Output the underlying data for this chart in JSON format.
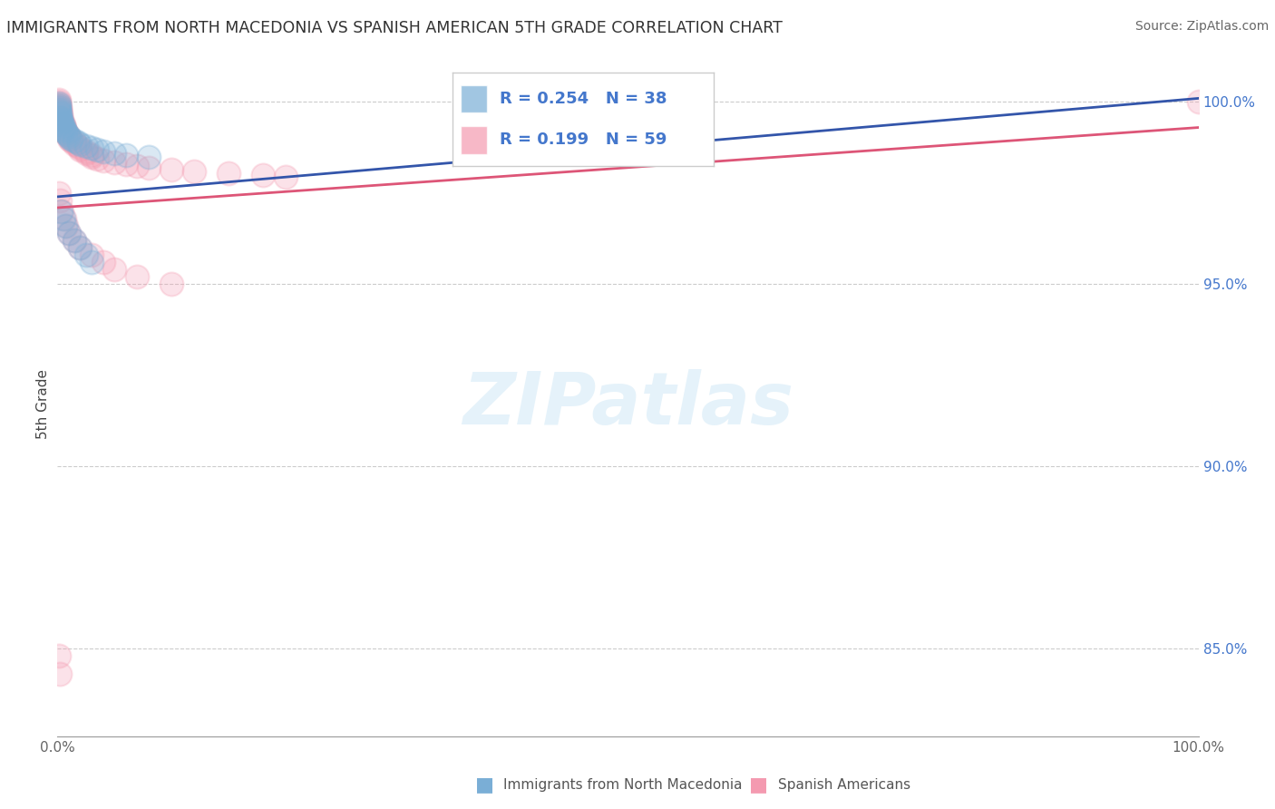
{
  "title": "IMMIGRANTS FROM NORTH MACEDONIA VS SPANISH AMERICAN 5TH GRADE CORRELATION CHART",
  "source": "Source: ZipAtlas.com",
  "ylabel": "5th Grade",
  "R_blue": 0.254,
  "N_blue": 38,
  "R_pink": 0.199,
  "N_pink": 59,
  "blue_color": "#7aaed6",
  "pink_color": "#f49ab0",
  "blue_line_color": "#3355aa",
  "pink_line_color": "#dd5577",
  "legend_text_color": "#4477cc",
  "grid_color": "#cccccc",
  "background_color": "#ffffff",
  "watermark_color": "#d4eaf7",
  "xlim": [
    0.0,
    1.0
  ],
  "ylim": [
    0.826,
    1.008
  ],
  "y_ticks": [
    0.85,
    0.9,
    0.95,
    1.0
  ],
  "y_tick_labels": [
    "85.0%",
    "90.0%",
    "95.0%",
    "100.0%"
  ],
  "blue_x": [
    0.001,
    0.001,
    0.001,
    0.001,
    0.001,
    0.002,
    0.002,
    0.002,
    0.003,
    0.003,
    0.004,
    0.004,
    0.005,
    0.005,
    0.006,
    0.007,
    0.008,
    0.009,
    0.01,
    0.012,
    0.015,
    0.018,
    0.02,
    0.025,
    0.03,
    0.035,
    0.04,
    0.05,
    0.06,
    0.08,
    0.003,
    0.005,
    0.007,
    0.01,
    0.015,
    0.02,
    0.025,
    0.03
  ],
  "blue_y": [
    0.9995,
    0.999,
    0.9985,
    0.998,
    0.9975,
    0.997,
    0.9965,
    0.996,
    0.9955,
    0.995,
    0.9945,
    0.994,
    0.9935,
    0.993,
    0.9925,
    0.992,
    0.9915,
    0.991,
    0.9905,
    0.99,
    0.9895,
    0.989,
    0.9885,
    0.988,
    0.9875,
    0.987,
    0.9865,
    0.986,
    0.9855,
    0.985,
    0.97,
    0.968,
    0.966,
    0.964,
    0.962,
    0.96,
    0.958,
    0.956
  ],
  "pink_x": [
    0.001,
    0.001,
    0.001,
    0.001,
    0.002,
    0.002,
    0.002,
    0.002,
    0.003,
    0.003,
    0.003,
    0.004,
    0.004,
    0.005,
    0.005,
    0.006,
    0.006,
    0.007,
    0.008,
    0.009,
    0.01,
    0.01,
    0.012,
    0.015,
    0.015,
    0.018,
    0.02,
    0.02,
    0.025,
    0.025,
    0.03,
    0.03,
    0.035,
    0.04,
    0.05,
    0.06,
    0.07,
    0.08,
    0.1,
    0.12,
    0.15,
    0.18,
    0.2,
    0.004,
    0.006,
    0.008,
    0.01,
    0.015,
    0.02,
    0.03,
    0.04,
    0.05,
    0.07,
    0.1,
    0.001,
    0.002,
    0.001,
    0.002,
    1.0
  ],
  "pink_y": [
    1.0005,
    1.0,
    0.9995,
    0.999,
    0.9985,
    0.998,
    0.9975,
    0.997,
    0.9965,
    0.996,
    0.9955,
    0.995,
    0.9945,
    0.994,
    0.9935,
    0.993,
    0.9925,
    0.992,
    0.9915,
    0.991,
    0.9905,
    0.99,
    0.9895,
    0.989,
    0.9885,
    0.988,
    0.9875,
    0.987,
    0.9865,
    0.986,
    0.9855,
    0.985,
    0.9845,
    0.984,
    0.9835,
    0.983,
    0.9825,
    0.982,
    0.9815,
    0.981,
    0.9805,
    0.98,
    0.9795,
    0.97,
    0.968,
    0.966,
    0.964,
    0.962,
    0.96,
    0.958,
    0.956,
    0.954,
    0.952,
    0.95,
    0.848,
    0.843,
    0.975,
    0.973,
    1.0
  ]
}
